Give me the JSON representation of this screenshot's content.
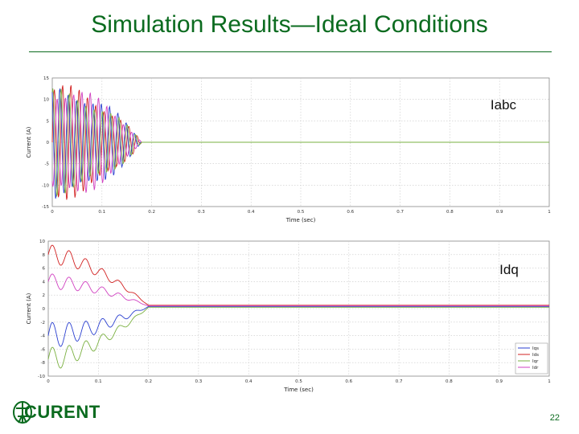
{
  "slide": {
    "title": "Simulation Results—Ideal Conditions",
    "page_number": "22",
    "logo_text": "CURENT",
    "brand_color": "#0b6b1f"
  },
  "chart_data": [
    {
      "type": "line",
      "panel_label": "Iabc",
      "xlabel": "Time (sec)",
      "ylabel": "Current (A)",
      "xlim": [
        0,
        1
      ],
      "ylim": [
        -15,
        15
      ],
      "xticks": [
        "0",
        "0.1",
        "0.2",
        "0.3",
        "0.4",
        "0.5",
        "0.6",
        "0.7",
        "0.8",
        "0.9",
        "1"
      ],
      "yticks": [
        "15",
        "10",
        "5",
        "0",
        "-5",
        "-10",
        "-15"
      ],
      "grid": true,
      "series": [
        {
          "color": "#d22020",
          "signal": {
            "kind": "ac",
            "amp": 12,
            "phase": 0.0,
            "freq_hz": 60,
            "decay_end": 0.18,
            "final": 0
          }
        },
        {
          "color": "#2a3fd0",
          "signal": {
            "kind": "ac",
            "amp": 12,
            "phase": 2.094,
            "freq_hz": 60,
            "decay_end": 0.18,
            "final": 0
          }
        },
        {
          "color": "#d040c0",
          "signal": {
            "kind": "ac",
            "amp": 12,
            "phase": 4.189,
            "freq_hz": 60,
            "decay_end": 0.18,
            "final": 0
          }
        },
        {
          "color": "#7ab040",
          "signal": {
            "kind": "ac",
            "amp": 11,
            "phase": 1.2,
            "freq_hz": 60,
            "decay_end": 0.18,
            "final": 0
          }
        }
      ]
    },
    {
      "type": "line",
      "panel_label": "Idq",
      "xlabel": "Time (sec)",
      "ylabel": "Current (A)",
      "xlim": [
        0,
        1
      ],
      "ylim": [
        -10,
        10
      ],
      "xticks": [
        "0",
        "0.1",
        "0.2",
        "0.3",
        "0.4",
        "0.5",
        "0.6",
        "0.7",
        "0.8",
        "0.9",
        "1"
      ],
      "yticks": [
        "10",
        "8",
        "6",
        "4",
        "2",
        "0",
        "-2",
        "-4",
        "-6",
        "-8",
        "-10"
      ],
      "grid": true,
      "legend_position": "bottom-right",
      "series": [
        {
          "name": "Iqs",
          "color": "#2a3fd0",
          "signal": {
            "kind": "dq",
            "start": -4,
            "osc": 2.0,
            "freq_hz": 30,
            "settle": 0.2,
            "final": 0.3
          }
        },
        {
          "name": "Ids",
          "color": "#d22020",
          "signal": {
            "kind": "dq",
            "start": 8,
            "osc": 1.5,
            "freq_hz": 30,
            "settle": 0.2,
            "final": 0.5
          }
        },
        {
          "name": "Iqr",
          "color": "#7ab040",
          "signal": {
            "kind": "dq",
            "start": -7.5,
            "osc": 1.8,
            "freq_hz": 30,
            "settle": 0.2,
            "final": 0.2
          }
        },
        {
          "name": "Idr",
          "color": "#d040c0",
          "signal": {
            "kind": "dq",
            "start": 4,
            "osc": 1.2,
            "freq_hz": 30,
            "settle": 0.2,
            "final": 0.4
          }
        }
      ]
    }
  ]
}
